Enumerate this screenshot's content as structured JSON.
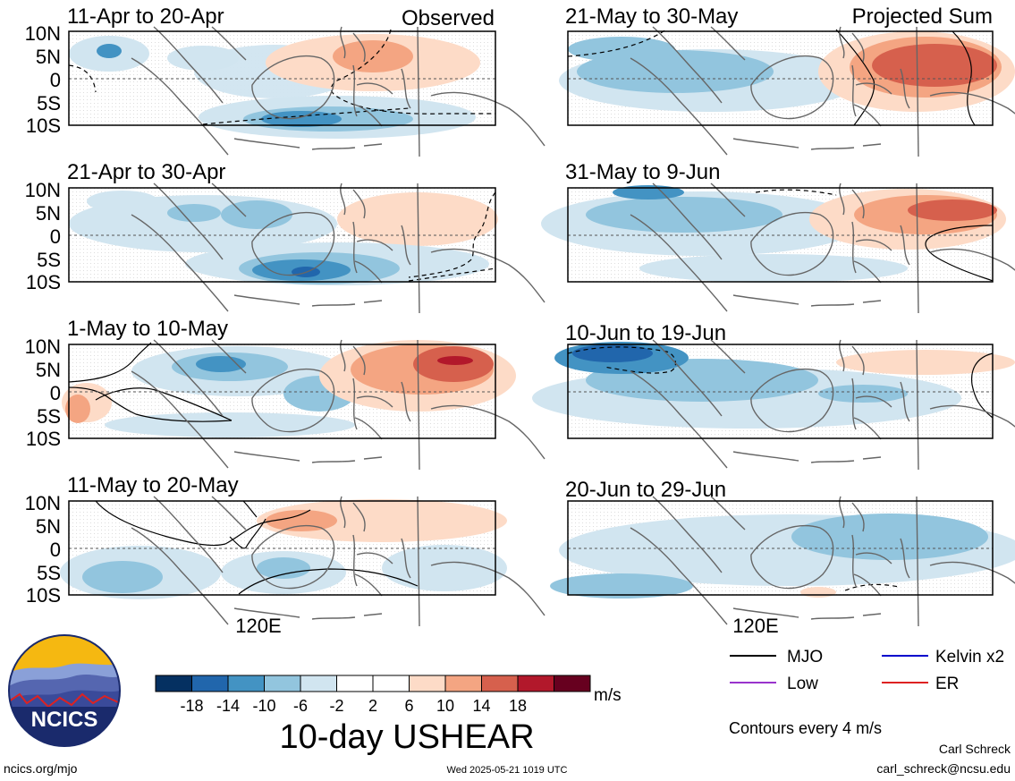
{
  "panels": [
    {
      "id": "p1",
      "date_range": "11-Apr to 20-Apr",
      "corner_label": "Observed"
    },
    {
      "id": "p2",
      "date_range": "21-Apr to 30-Apr",
      "corner_label": ""
    },
    {
      "id": "p3",
      "date_range": "1-May to 10-May",
      "corner_label": ""
    },
    {
      "id": "p4",
      "date_range": "11-May to 20-May",
      "corner_label": ""
    },
    {
      "id": "p5",
      "date_range": "21-May to 30-May",
      "corner_label": "Projected Sum"
    },
    {
      "id": "p6",
      "date_range": "31-May to 9-Jun",
      "corner_label": ""
    },
    {
      "id": "p7",
      "date_range": "10-Jun to 19-Jun",
      "corner_label": ""
    },
    {
      "id": "p8",
      "date_range": "20-Jun to 29-Jun",
      "corner_label": ""
    }
  ],
  "lat_labels": [
    "10N",
    "5N",
    "0",
    "5S",
    "10S"
  ],
  "lon_label_left": "120E",
  "lon_label_right": "120E",
  "colorbar": {
    "colors": [
      "#053061",
      "#2166ac",
      "#4393c3",
      "#92c5de",
      "#d1e5f0",
      "#ffffff",
      "#ffffff",
      "#fddbc7",
      "#f4a582",
      "#d6604d",
      "#b2182b",
      "#67001f"
    ],
    "tick_labels": [
      "-18",
      "-14",
      "-10",
      "-6",
      "-2",
      "2",
      "6",
      "10",
      "14",
      "18"
    ],
    "units": "m/s",
    "title": "10-day USHEAR"
  },
  "legend": {
    "items": [
      {
        "label": "MJO",
        "color": "#000000"
      },
      {
        "label": "Kelvin x2",
        "color": "#0000cc"
      },
      {
        "label": "Low",
        "color": "#9933cc"
      },
      {
        "label": "ER",
        "color": "#dd2222"
      }
    ],
    "note": "Contours every 4 m/s"
  },
  "logo": {
    "text": "NCICS"
  },
  "footer": {
    "url": "ncics.org/mjo",
    "timestamp": "Wed 2025-05-21 1019 UTC",
    "author": "Carl Schreck",
    "email": "carl_schreck@ncsu.edu"
  }
}
